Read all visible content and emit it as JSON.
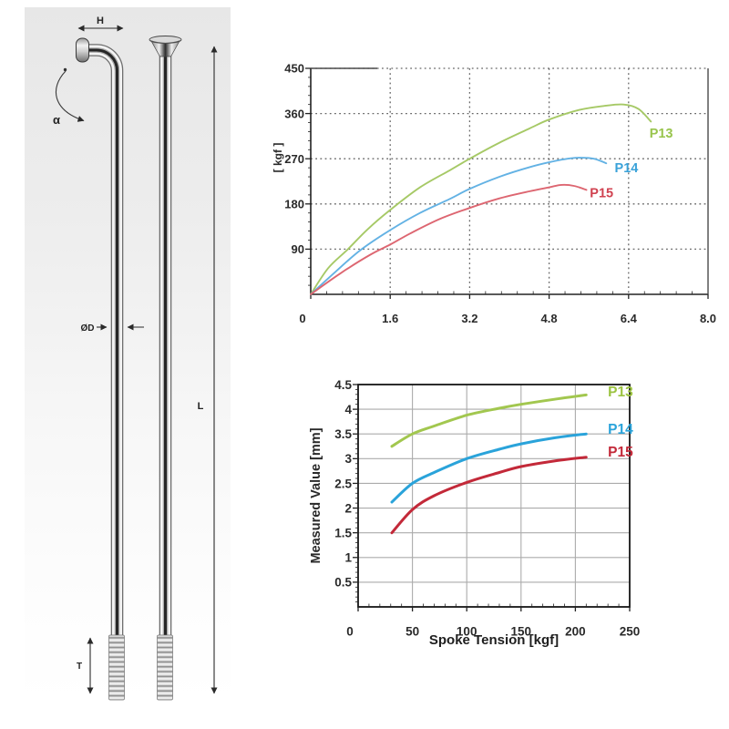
{
  "page": {
    "background": "#ffffff"
  },
  "diagram": {
    "labels": {
      "head_width": "H",
      "bend_angle": "α",
      "shaft_diameter": "ØD",
      "length": "L",
      "thread_length": "T"
    }
  },
  "chart_data": [
    {
      "id": "spoke-strength-chart",
      "type": "line",
      "title": "",
      "xlabel": "",
      "ylabel": "[ kgf ]",
      "xlim": [
        0,
        8.0
      ],
      "ylim": [
        0,
        450
      ],
      "x_tick_labels": [
        "0",
        "1.6",
        "3.2",
        "4.8",
        "6.4",
        "8.0"
      ],
      "y_tick_labels": [
        "90",
        "180",
        "270",
        "360",
        "450"
      ],
      "grid": "dotted",
      "legend_position": "end-of-line",
      "series": [
        {
          "name": "P13",
          "color": "#a6c966",
          "label_color": "#98c44c",
          "label_xy": [
            6.82,
            312
          ],
          "points": [
            [
              0,
              0
            ],
            [
              0.35,
              52
            ],
            [
              0.75,
              90
            ],
            [
              1.15,
              130
            ],
            [
              1.6,
              168
            ],
            [
              2.2,
              213
            ],
            [
              2.8,
              247
            ],
            [
              3.2,
              270
            ],
            [
              3.8,
              302
            ],
            [
              4.4,
              330
            ],
            [
              4.8,
              348
            ],
            [
              5.4,
              367
            ],
            [
              5.9,
              375
            ],
            [
              6.3,
              378
            ],
            [
              6.6,
              369
            ],
            [
              6.85,
              344
            ]
          ]
        },
        {
          "name": "P14",
          "color": "#63b2e4",
          "label_color": "#3aa2d9",
          "label_xy": [
            6.12,
            243
          ],
          "points": [
            [
              0,
              0
            ],
            [
              0.5,
              45
            ],
            [
              1.0,
              88
            ],
            [
              1.6,
              128
            ],
            [
              2.2,
              162
            ],
            [
              2.8,
              190
            ],
            [
              3.2,
              210
            ],
            [
              3.8,
              234
            ],
            [
              4.4,
              253
            ],
            [
              4.8,
              263
            ],
            [
              5.1,
              269
            ],
            [
              5.4,
              272
            ],
            [
              5.7,
              270
            ],
            [
              5.95,
              261
            ]
          ]
        },
        {
          "name": "P15",
          "color": "#dd6671",
          "label_color": "#d04250",
          "label_xy": [
            5.62,
            193
          ],
          "points": [
            [
              0,
              0
            ],
            [
              0.6,
              42
            ],
            [
              1.2,
              79
            ],
            [
              1.6,
              99
            ],
            [
              2.0,
              121
            ],
            [
              2.6,
              150
            ],
            [
              3.2,
              172
            ],
            [
              3.8,
              191
            ],
            [
              4.4,
              205
            ],
            [
              4.8,
              213
            ],
            [
              5.05,
              218
            ],
            [
              5.3,
              216
            ],
            [
              5.55,
              208
            ]
          ]
        }
      ]
    },
    {
      "id": "spoke-elongation-chart",
      "type": "line",
      "title": "",
      "xlabel": "Spoke Tension [kgf]",
      "ylabel": "Measured Value [mm]",
      "xlim": [
        0,
        250
      ],
      "ylim": [
        0,
        4.5
      ],
      "x_tick_labels": [
        "0",
        "50",
        "100",
        "150",
        "200",
        "250"
      ],
      "y_tick_labels": [
        "0.5",
        "1",
        "1.5",
        "2",
        "2.5",
        "3",
        "3.5",
        "4",
        "4.5"
      ],
      "grid": "solid",
      "legend_position": "end-of-line",
      "series": [
        {
          "name": "P13",
          "color": "#a2c74f",
          "label_color": "#9cc341",
          "label_xy": [
            230,
            4.26
          ],
          "points": [
            [
              31,
              3.25
            ],
            [
              50,
              3.5
            ],
            [
              70,
              3.66
            ],
            [
              100,
              3.88
            ],
            [
              130,
              4.02
            ],
            [
              150,
              4.1
            ],
            [
              180,
              4.2
            ],
            [
              210,
              4.29
            ]
          ]
        },
        {
          "name": "P14",
          "color": "#2aa3da",
          "label_color": "#2aa3da",
          "label_xy": [
            230,
            3.5
          ],
          "points": [
            [
              31,
              2.12
            ],
            [
              50,
              2.5
            ],
            [
              70,
              2.72
            ],
            [
              100,
              3.0
            ],
            [
              130,
              3.19
            ],
            [
              150,
              3.3
            ],
            [
              180,
              3.42
            ],
            [
              210,
              3.5
            ]
          ]
        },
        {
          "name": "P15",
          "color": "#c32939",
          "label_color": "#c32939",
          "label_xy": [
            230,
            3.04
          ],
          "points": [
            [
              31,
              1.5
            ],
            [
              50,
              1.97
            ],
            [
              70,
              2.25
            ],
            [
              100,
              2.52
            ],
            [
              130,
              2.72
            ],
            [
              150,
              2.84
            ],
            [
              180,
              2.95
            ],
            [
              210,
              3.03
            ]
          ]
        }
      ]
    }
  ]
}
